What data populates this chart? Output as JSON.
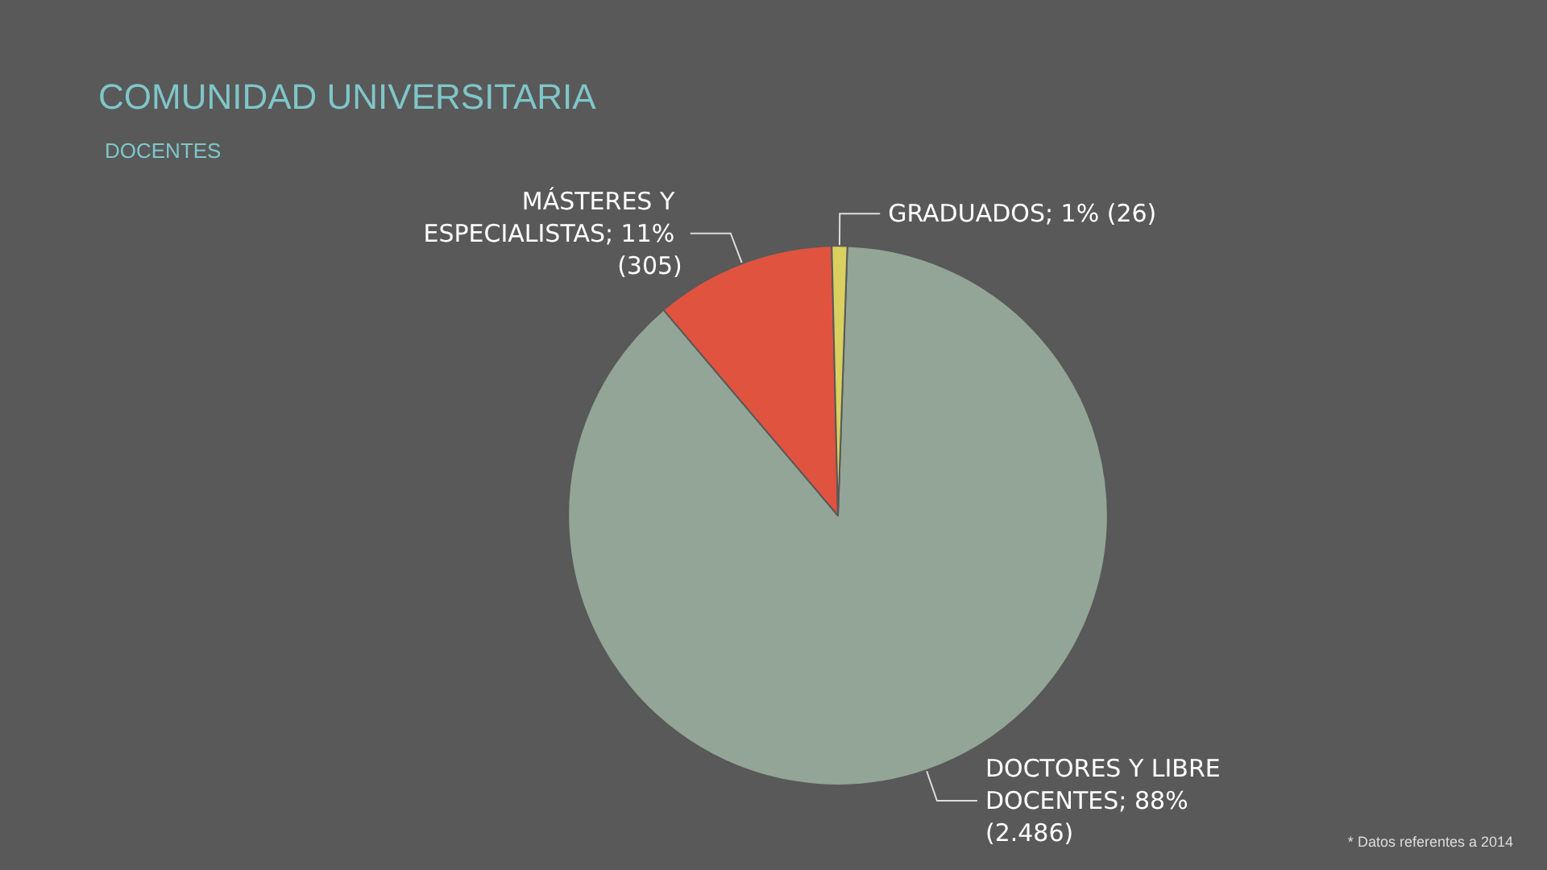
{
  "chart_data": {
    "type": "pie",
    "title": "COMUNIDAD UNIVERSITARIA",
    "subtitle": "DOCENTES",
    "categories": [
      "DOCTORES Y LIBRE DOCENTES",
      "MÁSTERES Y ESPECIALISTAS",
      "GRADUADOS"
    ],
    "values": [
      2486,
      305,
      26
    ],
    "value_labels": [
      "88% (2.486)",
      "11% (305)",
      "1% (26)"
    ],
    "colors": [
      "#93a596",
      "#e0533f",
      "#d9d060"
    ],
    "annotations": [
      "* Datos referentes a 2014"
    ],
    "legend": false
  }
}
